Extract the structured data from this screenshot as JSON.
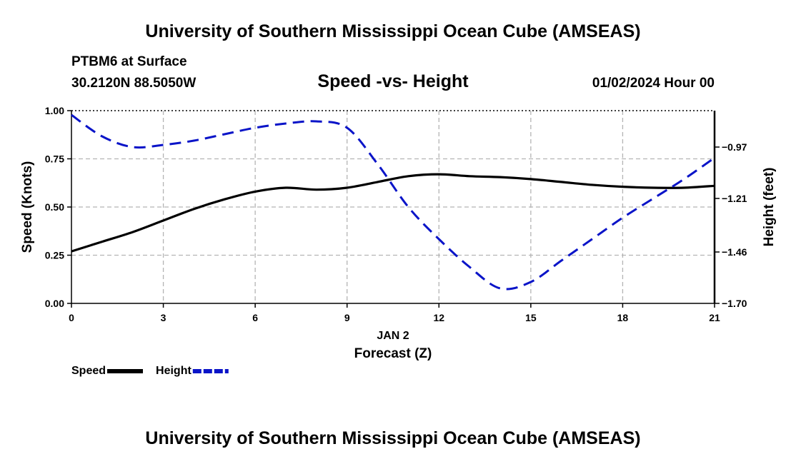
{
  "header": {
    "title": "University of Southern Mississippi Ocean Cube (AMSEAS)",
    "station": "PTBM6 at Surface",
    "coords": "30.2120N  88.5050W",
    "subtitle": "Speed -vs- Height",
    "datetime": "01/02/2024 Hour 00"
  },
  "footer": {
    "title": "University of Southern Mississippi Ocean Cube (AMSEAS)"
  },
  "chart_data": {
    "type": "line",
    "title": "Speed -vs- Height",
    "xlabel": "Forecast (Z)",
    "date_label": "JAN 2",
    "ylabel": "Speed (Knots)",
    "y2label": "Height (feet)",
    "xlim": [
      0,
      21
    ],
    "ylim": [
      0,
      1
    ],
    "y2lim": [
      -1.7,
      -0.8
    ],
    "x_ticks": [
      "0",
      "3",
      "6",
      "9",
      "12",
      "15",
      "18",
      "21"
    ],
    "y_ticks": [
      "0.00",
      "0.25",
      "0.50",
      "0.75",
      "1.00"
    ],
    "y2_ticks": [
      -1.7,
      -1.46,
      -1.21,
      -0.97
    ],
    "y2_tick_labels": [
      "−1.70",
      "−1.46",
      "−1.21",
      "−0.97"
    ],
    "grid": true,
    "series": [
      {
        "name": "Speed",
        "axis": "left",
        "color": "#000000",
        "style": "solid",
        "x": [
          0,
          1,
          2,
          3,
          4,
          5,
          6,
          7,
          8,
          9,
          10,
          11,
          12,
          13,
          14,
          15,
          16,
          17,
          18,
          19,
          20,
          21
        ],
        "values": [
          0.27,
          0.32,
          0.37,
          0.43,
          0.49,
          0.54,
          0.58,
          0.6,
          0.59,
          0.6,
          0.63,
          0.66,
          0.67,
          0.66,
          0.655,
          0.645,
          0.63,
          0.615,
          0.605,
          0.6,
          0.6,
          0.61
        ]
      },
      {
        "name": "Height",
        "axis": "right",
        "color": "#0a14c8",
        "style": "dashed",
        "x": [
          0,
          1,
          2,
          3,
          4,
          5,
          6,
          7,
          8,
          9,
          10,
          11,
          12,
          13,
          14,
          15,
          16,
          17,
          18,
          19,
          20,
          21
        ],
        "values": [
          -0.82,
          -0.92,
          -0.97,
          -0.96,
          -0.94,
          -0.91,
          -0.88,
          -0.86,
          -0.85,
          -0.88,
          -1.05,
          -1.25,
          -1.4,
          -1.53,
          -1.63,
          -1.6,
          -1.5,
          -1.4,
          -1.3,
          -1.21,
          -1.12,
          -1.02
        ]
      }
    ],
    "legend": [
      {
        "label": "Speed",
        "color": "#000000",
        "style": "solid"
      },
      {
        "label": "Height",
        "color": "#0a14c8",
        "style": "dashed"
      }
    ]
  }
}
